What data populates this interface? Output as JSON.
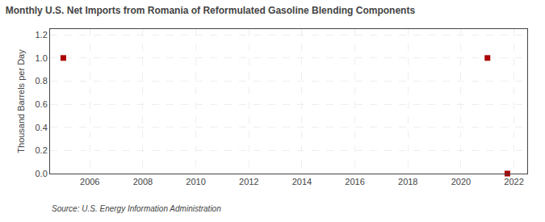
{
  "chart_data": {
    "type": "scatter",
    "title": "Monthly U.S. Net Imports from Romania of Reformulated Gasoline Blending Components",
    "ylabel": "Thousand Barrels per Day",
    "source": "Source: U.S. Energy Information Administration",
    "x": [
      2005.0,
      2021.0,
      2021.75
    ],
    "values": [
      1.0,
      1.0,
      0.0
    ],
    "color": "#aa0000",
    "marker": "square",
    "xlim": [
      2004.5,
      2022.5
    ],
    "xticks": [
      2006,
      2008,
      2010,
      2012,
      2014,
      2016,
      2018,
      2020,
      2022
    ],
    "ylim": [
      0.0,
      1.25
    ],
    "yticks": [
      {
        "value": 0.0,
        "label": "0.0"
      },
      0.2,
      0.4,
      0.6,
      0.8,
      {
        "value": 1.0,
        "label": "1.0"
      },
      1.2
    ],
    "grid": true
  }
}
